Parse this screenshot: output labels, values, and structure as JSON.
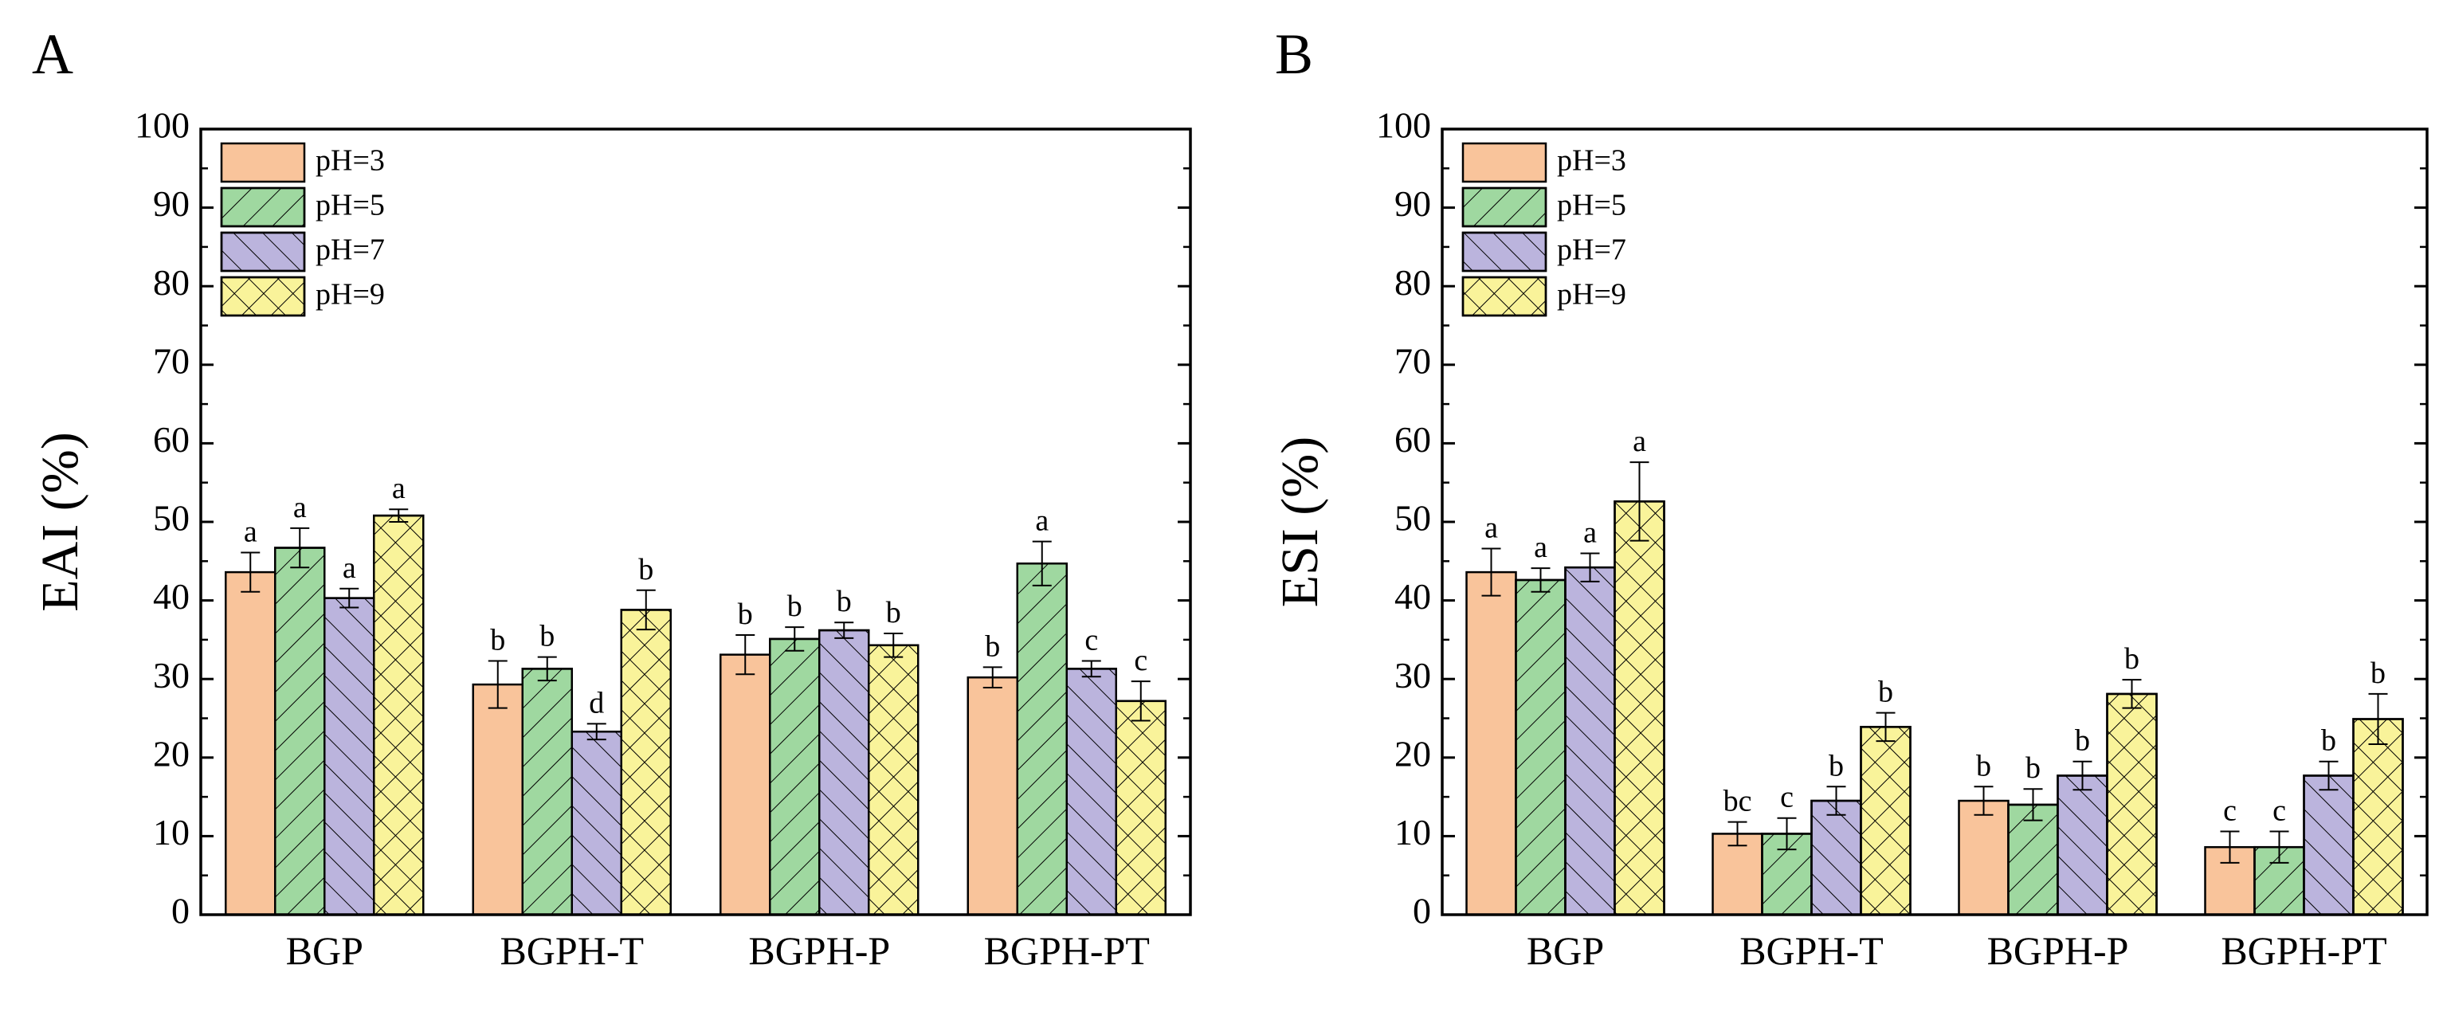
{
  "colors": {
    "pH3": "#f9c49b",
    "pH5": "#9fd8a0",
    "pH7": "#bbb4dd",
    "pH9": "#f9f39a",
    "axis": "#000000"
  },
  "chart_data": [
    {
      "panel_label": "A",
      "type": "bar",
      "ylabel": "EAI (%)",
      "ylim": [
        0,
        100
      ],
      "yticks": [
        "0",
        "10",
        "20",
        "30",
        "40",
        "50",
        "60",
        "70",
        "80",
        "90",
        "100"
      ],
      "categories": [
        "BGP",
        "BGPH-T",
        "BGPH-P",
        "BGPH-PT"
      ],
      "legend_position": "top-left",
      "series": [
        {
          "name": "pH=3",
          "values": [
            43.6,
            29.3,
            33.1,
            30.2
          ],
          "errors": [
            2.5,
            3.0,
            2.5,
            1.3
          ],
          "labels": [
            "a",
            "b",
            "b",
            "b"
          ]
        },
        {
          "name": "pH=5",
          "values": [
            46.7,
            31.3,
            35.1,
            44.7
          ],
          "errors": [
            2.5,
            1.5,
            1.5,
            2.8
          ],
          "labels": [
            "a",
            "b",
            "b",
            "a"
          ]
        },
        {
          "name": "pH=7",
          "values": [
            40.3,
            23.3,
            36.2,
            31.3
          ],
          "errors": [
            1.2,
            1.0,
            1.0,
            1.0
          ],
          "labels": [
            "a",
            "d",
            "b",
            "c"
          ]
        },
        {
          "name": "pH=9",
          "values": [
            50.8,
            38.8,
            34.3,
            27.2
          ],
          "errors": [
            0.8,
            2.5,
            1.5,
            2.5
          ],
          "labels": [
            "a",
            "b",
            "b",
            "c"
          ]
        }
      ]
    },
    {
      "panel_label": "B",
      "type": "bar",
      "ylabel": "ESI (%)",
      "ylim": [
        0,
        100
      ],
      "yticks": [
        "0",
        "10",
        "20",
        "30",
        "40",
        "50",
        "60",
        "70",
        "80",
        "90",
        "100"
      ],
      "categories": [
        "BGP",
        "BGPH-T",
        "BGPH-P",
        "BGPH-PT"
      ],
      "legend_position": "top-left",
      "series": [
        {
          "name": "pH=3",
          "values": [
            43.6,
            10.3,
            14.5,
            8.6
          ],
          "errors": [
            3.0,
            1.5,
            1.8,
            2.0
          ],
          "labels": [
            "a",
            "bc",
            "b",
            "c"
          ]
        },
        {
          "name": "pH=5",
          "values": [
            42.6,
            10.3,
            14.0,
            8.6
          ],
          "errors": [
            1.5,
            2.0,
            2.0,
            2.0
          ],
          "labels": [
            "a",
            "c",
            "b",
            "c"
          ]
        },
        {
          "name": "pH=7",
          "values": [
            44.2,
            14.5,
            17.7,
            17.7
          ],
          "errors": [
            1.8,
            1.8,
            1.8,
            1.8
          ],
          "labels": [
            "a",
            "b",
            "b",
            "b"
          ]
        },
        {
          "name": "pH=9",
          "values": [
            52.6,
            23.9,
            28.1,
            24.9
          ],
          "errors": [
            5.0,
            1.8,
            1.8,
            3.2
          ],
          "labels": [
            "a",
            "b",
            "b",
            "b"
          ]
        }
      ]
    }
  ]
}
